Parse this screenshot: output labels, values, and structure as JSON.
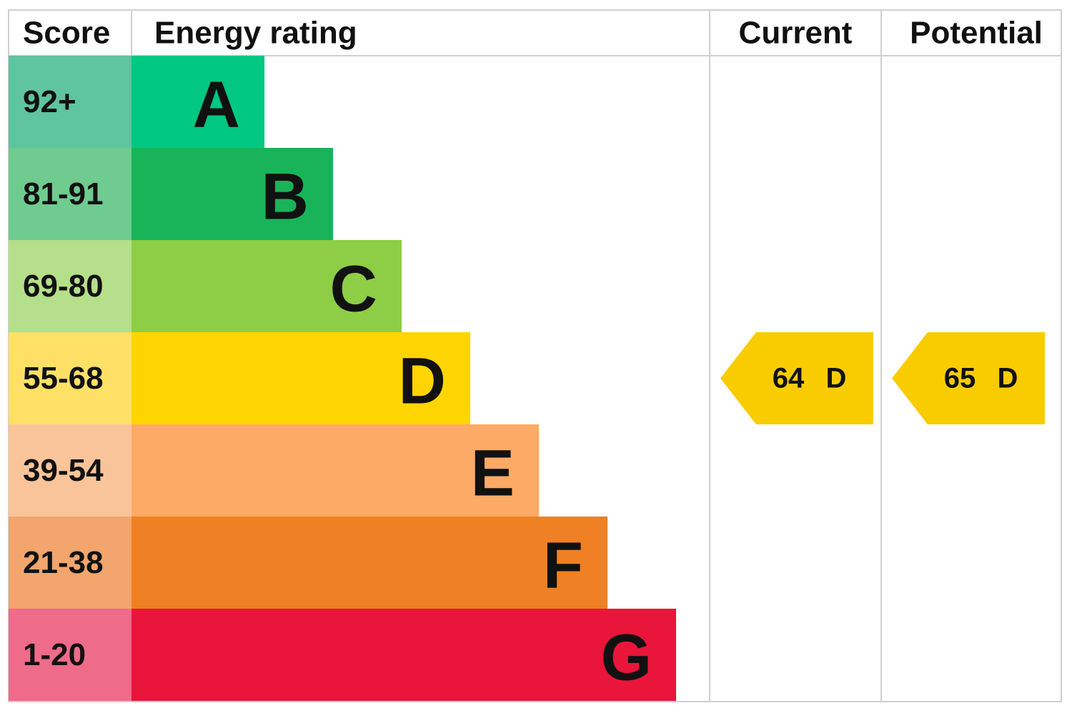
{
  "header": {
    "score": "Score",
    "energy_rating": "Energy rating",
    "current": "Current",
    "potential": "Potential"
  },
  "rows": [
    {
      "score": "92+",
      "letter": "A"
    },
    {
      "score": "81-91",
      "letter": "B"
    },
    {
      "score": "69-80",
      "letter": "C"
    },
    {
      "score": "55-68",
      "letter": "D"
    },
    {
      "score": "39-54",
      "letter": "E"
    },
    {
      "score": "21-38",
      "letter": "F"
    },
    {
      "score": "1-20",
      "letter": "G"
    }
  ],
  "current": {
    "value": 64,
    "letter": "D"
  },
  "potential": {
    "value": 65,
    "letter": "D"
  }
}
